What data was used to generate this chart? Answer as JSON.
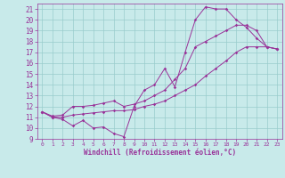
{
  "xlabel": "Windchill (Refroidissement éolien,°C)",
  "bg_color": "#c8eaea",
  "line_color": "#993399",
  "grid_color": "#99cccc",
  "xlim": [
    -0.5,
    23.5
  ],
  "ylim": [
    9,
    21.5
  ],
  "xticks": [
    0,
    1,
    2,
    3,
    4,
    5,
    6,
    7,
    8,
    9,
    10,
    11,
    12,
    13,
    14,
    15,
    16,
    17,
    18,
    19,
    20,
    21,
    22,
    23
  ],
  "yticks": [
    9,
    10,
    11,
    12,
    13,
    14,
    15,
    16,
    17,
    18,
    19,
    20,
    21
  ],
  "line1_x": [
    0,
    1,
    2,
    3,
    4,
    5,
    6,
    7,
    8,
    9,
    10,
    11,
    12,
    13,
    14,
    15,
    16,
    17,
    18,
    19,
    20,
    21,
    22,
    23
  ],
  "line1_y": [
    11.5,
    11.0,
    10.8,
    10.2,
    10.7,
    10.0,
    10.1,
    9.5,
    9.2,
    12.0,
    13.5,
    14.0,
    15.5,
    13.8,
    17.0,
    20.0,
    21.2,
    21.0,
    21.0,
    20.0,
    19.3,
    18.3,
    17.5,
    17.3
  ],
  "line2_x": [
    0,
    1,
    2,
    3,
    4,
    5,
    6,
    7,
    8,
    9,
    10,
    11,
    12,
    13,
    14,
    15,
    16,
    17,
    18,
    19,
    20,
    21,
    22,
    23
  ],
  "line2_y": [
    11.5,
    11.1,
    11.2,
    12.0,
    12.0,
    12.1,
    12.3,
    12.5,
    12.0,
    12.2,
    12.5,
    13.0,
    13.5,
    14.5,
    15.5,
    17.5,
    18.0,
    18.5,
    19.0,
    19.5,
    19.5,
    19.0,
    17.5,
    17.3
  ],
  "line3_x": [
    0,
    1,
    2,
    3,
    4,
    5,
    6,
    7,
    8,
    9,
    10,
    11,
    12,
    13,
    14,
    15,
    16,
    17,
    18,
    19,
    20,
    21,
    22,
    23
  ],
  "line3_y": [
    11.5,
    11.0,
    11.0,
    11.2,
    11.3,
    11.4,
    11.5,
    11.6,
    11.6,
    11.7,
    12.0,
    12.2,
    12.5,
    13.0,
    13.5,
    14.0,
    14.8,
    15.5,
    16.2,
    17.0,
    17.5,
    17.5,
    17.5,
    17.3
  ]
}
